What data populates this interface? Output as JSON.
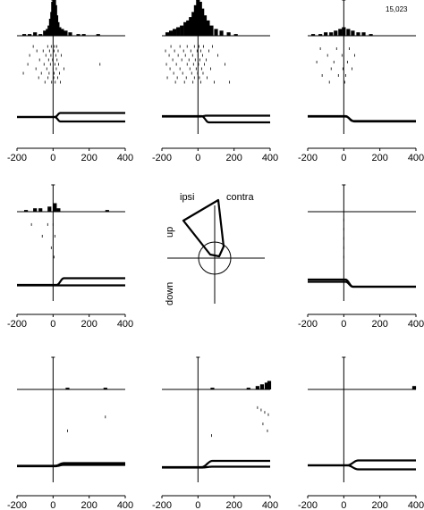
{
  "figure": {
    "cell_id": "15,023",
    "polar": {
      "labels": {
        "ipsi": "ipsi",
        "contra": "contra",
        "up": "up",
        "down": "down"
      }
    }
  },
  "chart_data": [
    {
      "type": "bar",
      "title": "",
      "xlim": [
        -200,
        400
      ],
      "x_ticks": [
        "-200",
        "0",
        "200",
        "400"
      ],
      "histogram": [
        [
          -160,
          1
        ],
        [
          -130,
          1
        ],
        [
          -100,
          2
        ],
        [
          -70,
          1
        ],
        [
          -45,
          3
        ],
        [
          -30,
          4
        ],
        [
          -20,
          6
        ],
        [
          -12,
          10
        ],
        [
          -5,
          14
        ],
        [
          0,
          20
        ],
        [
          6,
          22
        ],
        [
          12,
          18
        ],
        [
          18,
          12
        ],
        [
          25,
          8
        ],
        [
          35,
          5
        ],
        [
          50,
          4
        ],
        [
          70,
          3
        ],
        [
          95,
          2
        ],
        [
          140,
          1
        ],
        [
          170,
          1
        ],
        [
          250,
          1
        ]
      ],
      "raster": [
        [
          -110,
          0.1
        ],
        [
          -30,
          0.1
        ],
        [
          -10,
          0.1
        ],
        [
          8,
          0.1
        ],
        [
          20,
          0.1
        ],
        [
          -90,
          0.2
        ],
        [
          -55,
          0.2
        ],
        [
          -20,
          0.2
        ],
        [
          5,
          0.2
        ],
        [
          28,
          0.2
        ],
        [
          -130,
          0.3
        ],
        [
          -40,
          0.3
        ],
        [
          -12,
          0.3
        ],
        [
          15,
          0.3
        ],
        [
          45,
          0.3
        ],
        [
          -75,
          0.4
        ],
        [
          -25,
          0.4
        ],
        [
          -3,
          0.4
        ],
        [
          22,
          0.4
        ],
        [
          -140,
          0.5
        ],
        [
          -50,
          0.5
        ],
        [
          -15,
          0.5
        ],
        [
          10,
          0.5
        ],
        [
          30,
          0.5
        ],
        [
          260,
          0.5
        ],
        [
          -95,
          0.6
        ],
        [
          -35,
          0.6
        ],
        [
          0,
          0.6
        ],
        [
          18,
          0.6
        ],
        [
          60,
          0.6
        ],
        [
          -165,
          0.7
        ],
        [
          -65,
          0.7
        ],
        [
          -22,
          0.7
        ],
        [
          6,
          0.7
        ],
        [
          35,
          0.7
        ],
        [
          -80,
          0.8
        ],
        [
          -28,
          0.8
        ],
        [
          4,
          0.8
        ],
        [
          25,
          0.8
        ],
        [
          -45,
          0.9
        ],
        [
          -8,
          0.9
        ],
        [
          12,
          0.9
        ],
        [
          40,
          0.9
        ]
      ],
      "traces": [
        {
          "pre": 0,
          "post": 0.45,
          "onset": 10,
          "rise": 30
        },
        {
          "pre": 0,
          "post": -0.5,
          "onset": 10,
          "rise": 30
        }
      ]
    },
    {
      "type": "bar",
      "title": "",
      "xlim": [
        -200,
        400
      ],
      "x_ticks": [
        "-200",
        "0",
        "200",
        "400"
      ],
      "histogram": [
        [
          -170,
          2
        ],
        [
          -150,
          3
        ],
        [
          -130,
          4
        ],
        [
          -110,
          5
        ],
        [
          -90,
          6
        ],
        [
          -70,
          8
        ],
        [
          -55,
          9
        ],
        [
          -40,
          11
        ],
        [
          -25,
          14
        ],
        [
          -12,
          18
        ],
        [
          0,
          22
        ],
        [
          12,
          20
        ],
        [
          24,
          16
        ],
        [
          38,
          12
        ],
        [
          55,
          9
        ],
        [
          75,
          6
        ],
        [
          100,
          4
        ],
        [
          130,
          3
        ],
        [
          170,
          2
        ],
        [
          210,
          1
        ]
      ],
      "raster": [
        [
          -150,
          0.1
        ],
        [
          -100,
          0.1
        ],
        [
          -60,
          0.1
        ],
        [
          -20,
          0.1
        ],
        [
          5,
          0.1
        ],
        [
          30,
          0.1
        ],
        [
          80,
          0.1
        ],
        [
          -180,
          0.2
        ],
        [
          -130,
          0.2
        ],
        [
          -80,
          0.2
        ],
        [
          -40,
          0.2
        ],
        [
          -5,
          0.2
        ],
        [
          15,
          0.2
        ],
        [
          60,
          0.2
        ],
        [
          -160,
          0.3
        ],
        [
          -110,
          0.3
        ],
        [
          -70,
          0.3
        ],
        [
          -30,
          0.3
        ],
        [
          0,
          0.3
        ],
        [
          25,
          0.3
        ],
        [
          110,
          0.3
        ],
        [
          -140,
          0.4
        ],
        [
          -90,
          0.4
        ],
        [
          -50,
          0.4
        ],
        [
          -15,
          0.4
        ],
        [
          10,
          0.4
        ],
        [
          45,
          0.4
        ],
        [
          -175,
          0.5
        ],
        [
          -120,
          0.5
        ],
        [
          -60,
          0.5
        ],
        [
          -25,
          0.5
        ],
        [
          3,
          0.5
        ],
        [
          35,
          0.5
        ],
        [
          150,
          0.5
        ],
        [
          -155,
          0.6
        ],
        [
          -100,
          0.6
        ],
        [
          -45,
          0.6
        ],
        [
          -10,
          0.6
        ],
        [
          20,
          0.6
        ],
        [
          70,
          0.6
        ],
        [
          -135,
          0.7
        ],
        [
          -85,
          0.7
        ],
        [
          -35,
          0.7
        ],
        [
          -2,
          0.7
        ],
        [
          28,
          0.7
        ],
        [
          -170,
          0.8
        ],
        [
          -115,
          0.8
        ],
        [
          -65,
          0.8
        ],
        [
          -20,
          0.8
        ],
        [
          8,
          0.8
        ],
        [
          50,
          0.8
        ],
        [
          -125,
          0.9
        ],
        [
          -75,
          0.9
        ],
        [
          -28,
          0.9
        ],
        [
          15,
          0.9
        ],
        [
          90,
          0.9
        ],
        [
          175,
          0.9
        ]
      ],
      "traces": [
        {
          "pre": 0.1,
          "post": -0.6,
          "onset": 20,
          "rise": 40
        },
        {
          "pre": 0.05,
          "post": 0.15,
          "onset": 10,
          "rise": 40
        }
      ]
    },
    {
      "type": "bar",
      "title": "",
      "xlim": [
        -200,
        400
      ],
      "x_ticks": [
        "-200",
        "0",
        "200",
        "400"
      ],
      "histogram": [
        [
          -170,
          1
        ],
        [
          -130,
          1
        ],
        [
          -100,
          2
        ],
        [
          -70,
          2
        ],
        [
          -45,
          3
        ],
        [
          -20,
          4
        ],
        [
          0,
          5
        ],
        [
          25,
          4
        ],
        [
          50,
          3
        ],
        [
          80,
          2
        ],
        [
          110,
          2
        ],
        [
          150,
          1
        ]
      ],
      "raster": [
        [
          -130,
          0.15
        ],
        [
          -40,
          0.15
        ],
        [
          30,
          0.15
        ],
        [
          -90,
          0.3
        ],
        [
          -10,
          0.3
        ],
        [
          60,
          0.3
        ],
        [
          -150,
          0.45
        ],
        [
          -55,
          0.45
        ],
        [
          20,
          0.45
        ],
        [
          -70,
          0.6
        ],
        [
          -5,
          0.6
        ],
        [
          45,
          0.6
        ],
        [
          -120,
          0.75
        ],
        [
          -30,
          0.75
        ],
        [
          10,
          0.75
        ],
        [
          -80,
          0.9
        ],
        [
          5,
          0.9
        ]
      ],
      "traces": [
        {
          "pre": 0.1,
          "post": -0.45,
          "onset": 10,
          "rise": 40
        },
        {
          "pre": 0.05,
          "post": -0.5,
          "onset": 10,
          "rise": 50
        }
      ]
    },
    {
      "type": "bar",
      "title": "",
      "xlim": [
        -200,
        400
      ],
      "x_ticks": [
        "-200",
        "0",
        "200",
        "400"
      ],
      "histogram": [
        [
          -150,
          1
        ],
        [
          -100,
          2
        ],
        [
          -70,
          2
        ],
        [
          -20,
          3
        ],
        [
          10,
          5
        ],
        [
          30,
          2
        ],
        [
          300,
          1
        ]
      ],
      "raster": [
        [
          -120,
          0.2
        ],
        [
          -30,
          0.2
        ],
        [
          0,
          0.2
        ],
        [
          -60,
          0.45
        ],
        [
          10,
          0.45
        ],
        [
          -10,
          0.7
        ],
        [
          5,
          0.9
        ]
      ],
      "traces": [
        {
          "pre": -0.1,
          "post": 0.65,
          "onset": 20,
          "rise": 40
        },
        {
          "pre": -0.15,
          "post": -0.15,
          "onset": 20,
          "rise": 40
        }
      ]
    },
    {
      "type": "bar",
      "title": "",
      "xlim": [
        -200,
        400
      ],
      "x_ticks": [
        "-200",
        "0",
        "200",
        "400"
      ],
      "histogram": [],
      "raster": [
        [
          0,
          0.1
        ],
        [
          0,
          0.3
        ],
        [
          0,
          0.5
        ],
        [
          0,
          0.7
        ],
        [
          0,
          0.9
        ]
      ],
      "traces": [
        {
          "pre": 0.5,
          "post": -0.3,
          "onset": 10,
          "rise": 40
        },
        {
          "pre": 0.25,
          "post": -0.3,
          "onset": 10,
          "rise": 40
        }
      ]
    },
    {
      "type": "bar",
      "title": "",
      "xlim": [
        -200,
        400
      ],
      "x_ticks": [
        "-200",
        "0",
        "200",
        "400"
      ],
      "histogram": [
        [
          80,
          1
        ],
        [
          290,
          1
        ]
      ],
      "raster": [
        [
          80,
          0.7
        ],
        [
          290,
          0.4
        ]
      ],
      "traces": [
        {
          "pre": -0.05,
          "post": 0.25,
          "onset": 10,
          "rise": 50
        },
        {
          "pre": -0.1,
          "post": 0.05,
          "onset": 10,
          "rise": 50
        }
      ]
    },
    {
      "type": "bar",
      "title": "",
      "xlim": [
        -200,
        400
      ],
      "x_ticks": [
        "-200",
        "0",
        "200",
        "400"
      ],
      "histogram": [
        [
          80,
          1
        ],
        [
          280,
          1
        ],
        [
          330,
          2
        ],
        [
          355,
          3
        ],
        [
          380,
          4
        ],
        [
          395,
          5
        ]
      ],
      "raster": [
        [
          330,
          0.2
        ],
        [
          350,
          0.25
        ],
        [
          370,
          0.3
        ],
        [
          390,
          0.35
        ],
        [
          360,
          0.55
        ],
        [
          385,
          0.7
        ],
        [
          75,
          0.8
        ]
      ],
      "traces": [
        {
          "pre": -0.2,
          "post": 0.5,
          "onset": 20,
          "rise": 60
        },
        {
          "pre": -0.25,
          "post": -0.15,
          "onset": 20,
          "rise": 60
        }
      ]
    },
    {
      "type": "bar",
      "title": "",
      "xlim": [
        -200,
        400
      ],
      "x_ticks": [
        "-200",
        "0",
        "200",
        "400"
      ],
      "histogram": [
        [
          390,
          2
        ]
      ],
      "raster": [],
      "traces": [
        {
          "pre": 0,
          "post": 0.55,
          "onset": 20,
          "rise": 60
        },
        {
          "pre": 0,
          "post": -0.45,
          "onset": 20,
          "rise": 60
        }
      ]
    }
  ]
}
